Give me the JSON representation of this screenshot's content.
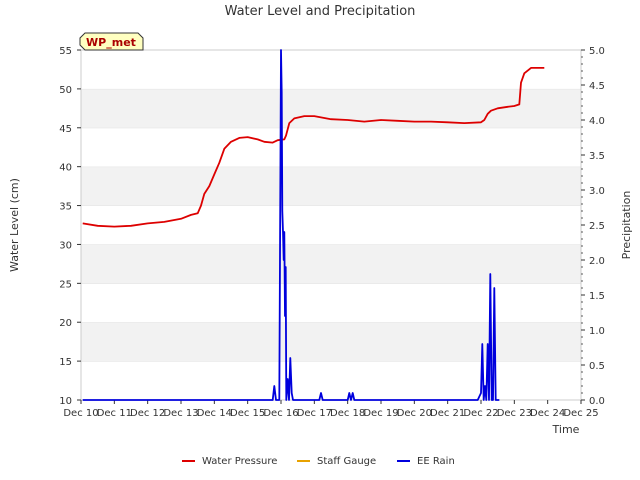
{
  "chart_data": {
    "type": "line",
    "title": "Water Level and Precipitation",
    "site_badge": "WP_met",
    "xlabel": "Time",
    "ylabel_left": "Water Level (cm)",
    "ylabel_right": "Precipitation",
    "ylim_left": [
      10,
      55
    ],
    "ylim_right": [
      0,
      5
    ],
    "xlim": [
      10,
      25
    ],
    "x_ticks": [
      {
        "v": 10,
        "label": "Dec 10"
      },
      {
        "v": 11,
        "label": "Dec 11"
      },
      {
        "v": 12,
        "label": "Dec 12"
      },
      {
        "v": 13,
        "label": "Dec 13"
      },
      {
        "v": 14,
        "label": "Dec 14"
      },
      {
        "v": 15,
        "label": "Dec 15"
      },
      {
        "v": 16,
        "label": "Dec 16"
      },
      {
        "v": 17,
        "label": "Dec 17"
      },
      {
        "v": 18,
        "label": "Dec 18"
      },
      {
        "v": 19,
        "label": "Dec 19"
      },
      {
        "v": 20,
        "label": "Dec 20"
      },
      {
        "v": 21,
        "label": "Dec 21"
      },
      {
        "v": 22,
        "label": "Dec 22"
      },
      {
        "v": 23,
        "label": "Dec 23"
      },
      {
        "v": 24,
        "label": "Dec 24"
      },
      {
        "v": 25,
        "label": "Dec 25"
      }
    ],
    "y_ticks_left": [
      "10",
      "15",
      "20",
      "25",
      "30",
      "35",
      "40",
      "45",
      "50",
      "55"
    ],
    "y_ticks_right": [
      "0.0",
      "0.5",
      "1.0",
      "1.5",
      "2.0",
      "2.5",
      "3.0",
      "3.5",
      "4.0",
      "4.5",
      "5.0"
    ],
    "grid": "horizontal bands",
    "legend_position": "bottom",
    "legend": [
      "Water Pressure",
      "Staff Gauge",
      "EE Rain"
    ],
    "series": [
      {
        "name": "Water Pressure",
        "color": "#dd0000",
        "axis": "left",
        "x": [
          10.05,
          10.5,
          11.0,
          11.5,
          12.0,
          12.5,
          13.0,
          13.3,
          13.5,
          13.6,
          13.7,
          13.85,
          14.0,
          14.15,
          14.3,
          14.5,
          14.75,
          15.0,
          15.3,
          15.5,
          15.75,
          15.9,
          16.1,
          16.15,
          16.25,
          16.4,
          16.7,
          17.0,
          17.5,
          18.0,
          18.5,
          19.0,
          19.5,
          20.0,
          20.5,
          21.0,
          21.5,
          22.0,
          22.1,
          22.2,
          22.3,
          22.5,
          22.8,
          23.0,
          23.15,
          23.2,
          23.3,
          23.5,
          23.7,
          23.9
        ],
        "y": [
          32.7,
          32.4,
          32.3,
          32.4,
          32.7,
          32.9,
          33.3,
          33.8,
          34.0,
          35.0,
          36.5,
          37.5,
          39.0,
          40.5,
          42.3,
          43.2,
          43.7,
          43.8,
          43.5,
          43.2,
          43.1,
          43.4,
          43.5,
          44.0,
          45.6,
          46.2,
          46.5,
          46.5,
          46.1,
          46.0,
          45.8,
          46.0,
          45.9,
          45.8,
          45.8,
          45.7,
          45.6,
          45.7,
          46.0,
          46.8,
          47.2,
          47.5,
          47.7,
          47.8,
          48.0,
          50.8,
          52.0,
          52.7,
          52.7,
          52.7
        ]
      },
      {
        "name": "Staff Gauge",
        "color": "#e8a200",
        "axis": "left",
        "x": [],
        "y": []
      },
      {
        "name": "EE Rain",
        "color": "#0000dd",
        "axis": "right",
        "x": [
          10.05,
          15.75,
          15.8,
          15.85,
          15.95,
          16.0,
          16.02,
          16.04,
          16.06,
          16.08,
          16.1,
          16.12,
          16.14,
          16.16,
          16.2,
          16.24,
          16.28,
          16.32,
          16.36,
          16.4,
          16.45,
          17.15,
          17.2,
          17.25,
          18.0,
          18.05,
          18.1,
          18.15,
          18.2,
          18.25,
          21.9,
          22.0,
          22.04,
          22.08,
          22.12,
          22.16,
          22.2,
          22.24,
          22.28,
          22.32,
          22.36,
          22.4,
          22.44,
          22.48,
          22.55
        ],
        "y": [
          0.0,
          0.0,
          0.2,
          0.0,
          0.0,
          5.0,
          4.4,
          2.7,
          2.4,
          2.0,
          2.4,
          1.2,
          1.9,
          0.0,
          0.3,
          0.0,
          0.6,
          0.1,
          0.0,
          0.0,
          0.0,
          0.0,
          0.1,
          0.0,
          0.0,
          0.1,
          0.0,
          0.1,
          0.0,
          0.0,
          0.0,
          0.1,
          0.8,
          0.0,
          0.2,
          0.0,
          0.8,
          0.0,
          1.8,
          0.0,
          0.0,
          1.6,
          0.0,
          0.0,
          0.0
        ]
      }
    ]
  }
}
